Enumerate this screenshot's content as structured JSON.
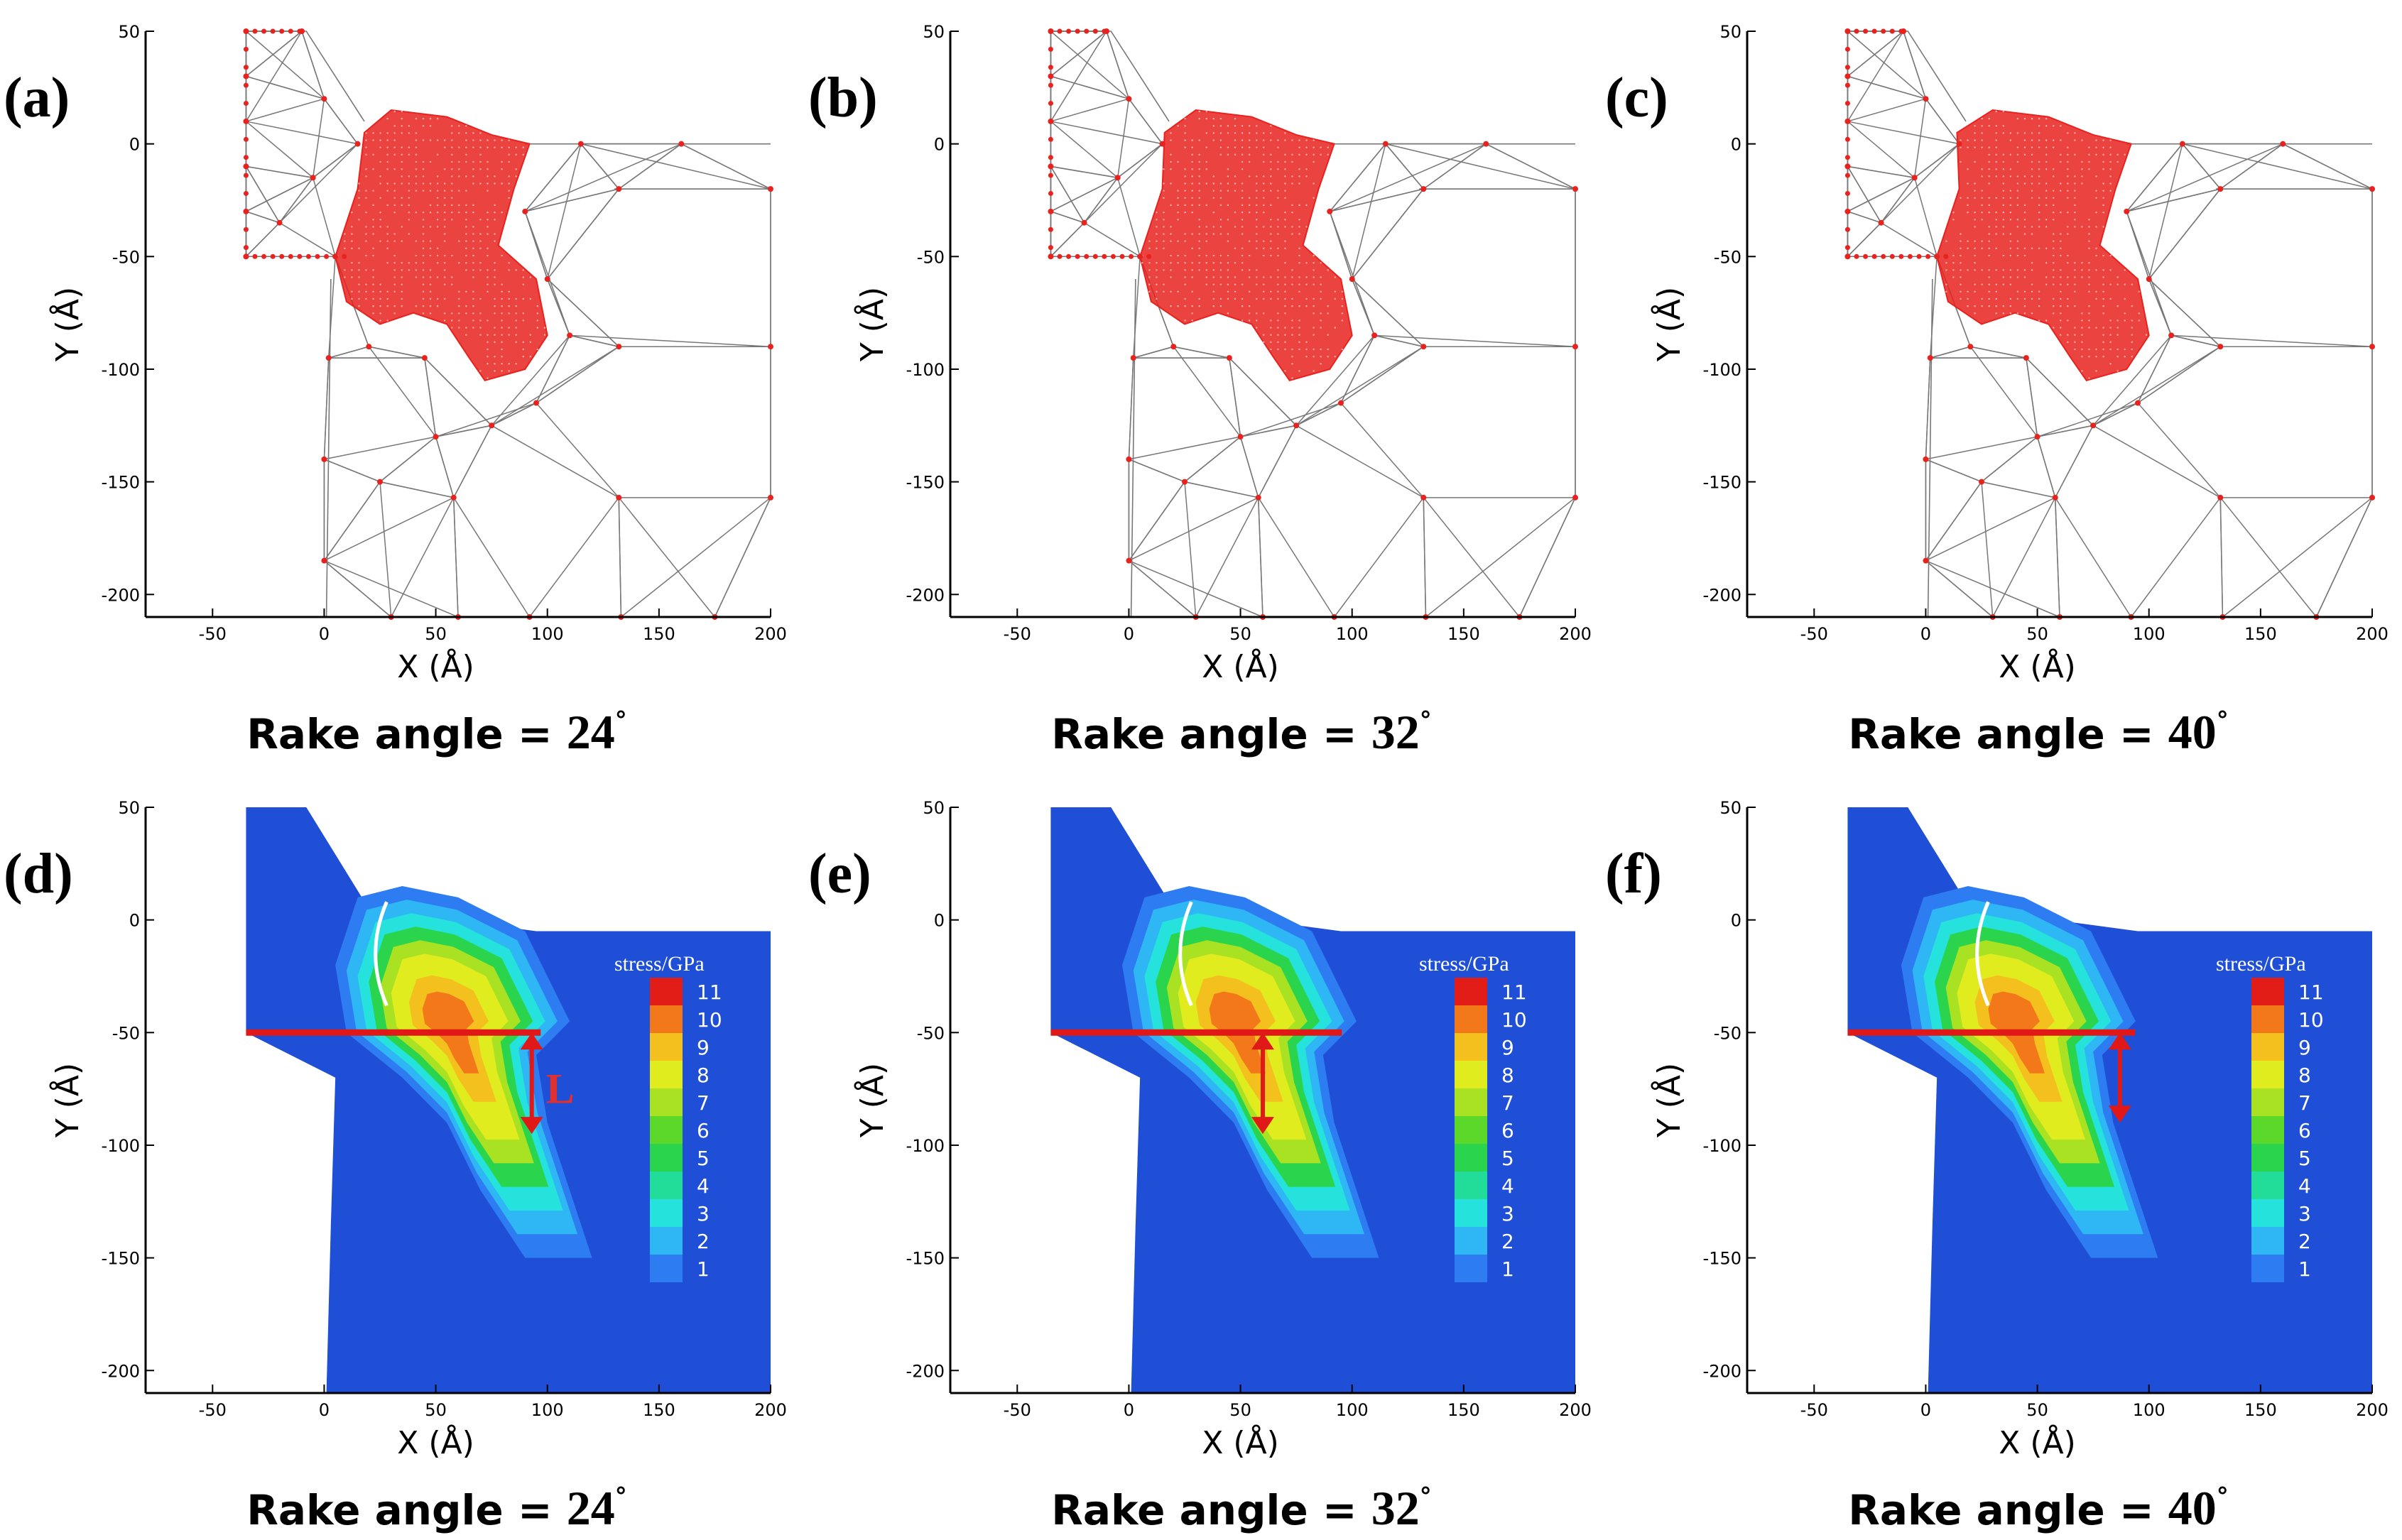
{
  "figure": {
    "row_top_description": "Atomistic (red nodes) and finite-element mesh (gray) for nano-cutting",
    "row_bottom_description": "Stress contour maps",
    "panels": [
      {
        "label": "(a)",
        "caption_text": "Rake angle = ",
        "angle": "24",
        "kind": "mesh",
        "angle_num": 24
      },
      {
        "label": "(b)",
        "caption_text": "Rake angle = ",
        "angle": "32",
        "kind": "mesh",
        "angle_num": 32
      },
      {
        "label": "(c)",
        "caption_text": "Rake angle = ",
        "angle": "40",
        "kind": "mesh",
        "angle_num": 40
      },
      {
        "label": "(d)",
        "caption_text": "Rake angle = ",
        "angle": "24",
        "kind": "stress",
        "angle_num": 24
      },
      {
        "label": "(e)",
        "caption_text": "Rake angle = ",
        "angle": "32",
        "kind": "stress",
        "angle_num": 32
      },
      {
        "label": "(f)",
        "caption_text": "Rake angle = ",
        "angle": "40",
        "kind": "stress",
        "angle_num": 40
      }
    ],
    "degree_symbol": "°",
    "annotation_L": "L"
  },
  "chart_data": [
    {
      "type": "mesh",
      "panel": "(a)",
      "xlabel": "X (Å)",
      "ylabel": "Y (Å)",
      "xlim": [
        -80,
        200
      ],
      "ylim": [
        -210,
        50
      ],
      "xticks": [
        -50,
        0,
        50,
        100,
        150,
        200
      ],
      "yticks": [
        50,
        0,
        -50,
        -100,
        -150,
        -200
      ]
    },
    {
      "type": "mesh",
      "panel": "(b)",
      "xlabel": "X (Å)",
      "ylabel": "Y (Å)",
      "xlim": [
        -80,
        200
      ],
      "ylim": [
        -210,
        50
      ],
      "xticks": [
        -50,
        0,
        50,
        100,
        150,
        200
      ],
      "yticks": [
        50,
        0,
        -50,
        -100,
        -150,
        -200
      ]
    },
    {
      "type": "mesh",
      "panel": "(c)",
      "xlabel": "X (Å)",
      "ylabel": "Y (Å)",
      "xlim": [
        -80,
        200
      ],
      "ylim": [
        -210,
        50
      ],
      "xticks": [
        -50,
        0,
        50,
        100,
        150,
        200
      ],
      "yticks": [
        50,
        0,
        -50,
        -100,
        -150,
        -200
      ]
    },
    {
      "type": "heatmap",
      "panel": "(d)",
      "xlabel": "X (Å)",
      "ylabel": "Y (Å)",
      "xlim": [
        -80,
        200
      ],
      "ylim": [
        -210,
        50
      ],
      "xticks": [
        -50,
        0,
        50,
        100,
        150,
        200
      ],
      "yticks": [
        50,
        0,
        -50,
        -100,
        -150,
        -200
      ],
      "legend_title": "stress/GPa",
      "legend_levels": [
        11,
        10,
        9,
        8,
        7,
        6,
        5,
        4,
        3,
        2,
        1
      ],
      "L_marker": {
        "x": 93,
        "y_top": -50,
        "y_bottom": -95
      }
    },
    {
      "type": "heatmap",
      "panel": "(e)",
      "xlabel": "X (Å)",
      "ylabel": "Y (Å)",
      "xlim": [
        -80,
        200
      ],
      "ylim": [
        -210,
        50
      ],
      "xticks": [
        -50,
        0,
        50,
        100,
        150,
        200
      ],
      "yticks": [
        50,
        0,
        -50,
        -100,
        -150,
        -200
      ],
      "legend_title": "stress/GPa",
      "legend_levels": [
        11,
        10,
        9,
        8,
        7,
        6,
        5,
        4,
        3,
        2,
        1
      ],
      "L_marker": {
        "x": 60,
        "y_top": -50,
        "y_bottom": -95
      }
    },
    {
      "type": "heatmap",
      "panel": "(f)",
      "xlabel": "X (Å)",
      "ylabel": "Y (Å)",
      "xlim": [
        -80,
        200
      ],
      "ylim": [
        -210,
        50
      ],
      "xticks": [
        -50,
        0,
        50,
        100,
        150,
        200
      ],
      "yticks": [
        50,
        0,
        -50,
        -100,
        -150,
        -200
      ],
      "legend_title": "stress/GPa",
      "legend_levels": [
        11,
        10,
        9,
        8,
        7,
        6,
        5,
        4,
        3,
        2,
        1
      ],
      "L_marker": {
        "x": 87,
        "y_top": -50,
        "y_bottom": -90
      }
    }
  ],
  "colors": {
    "atom": "#e8221e",
    "mesh_line": "#777777",
    "axis": "#000000",
    "tool_line": "#e01818",
    "stress_levels": [
      "#1f4fd6",
      "#2e7cf2",
      "#2eb6f5",
      "#25e2dd",
      "#22dc9a",
      "#2ad44c",
      "#5bd82a",
      "#a8e222",
      "#e0ec1e",
      "#f3c01e",
      "#f2781a",
      "#e21c16"
    ]
  }
}
